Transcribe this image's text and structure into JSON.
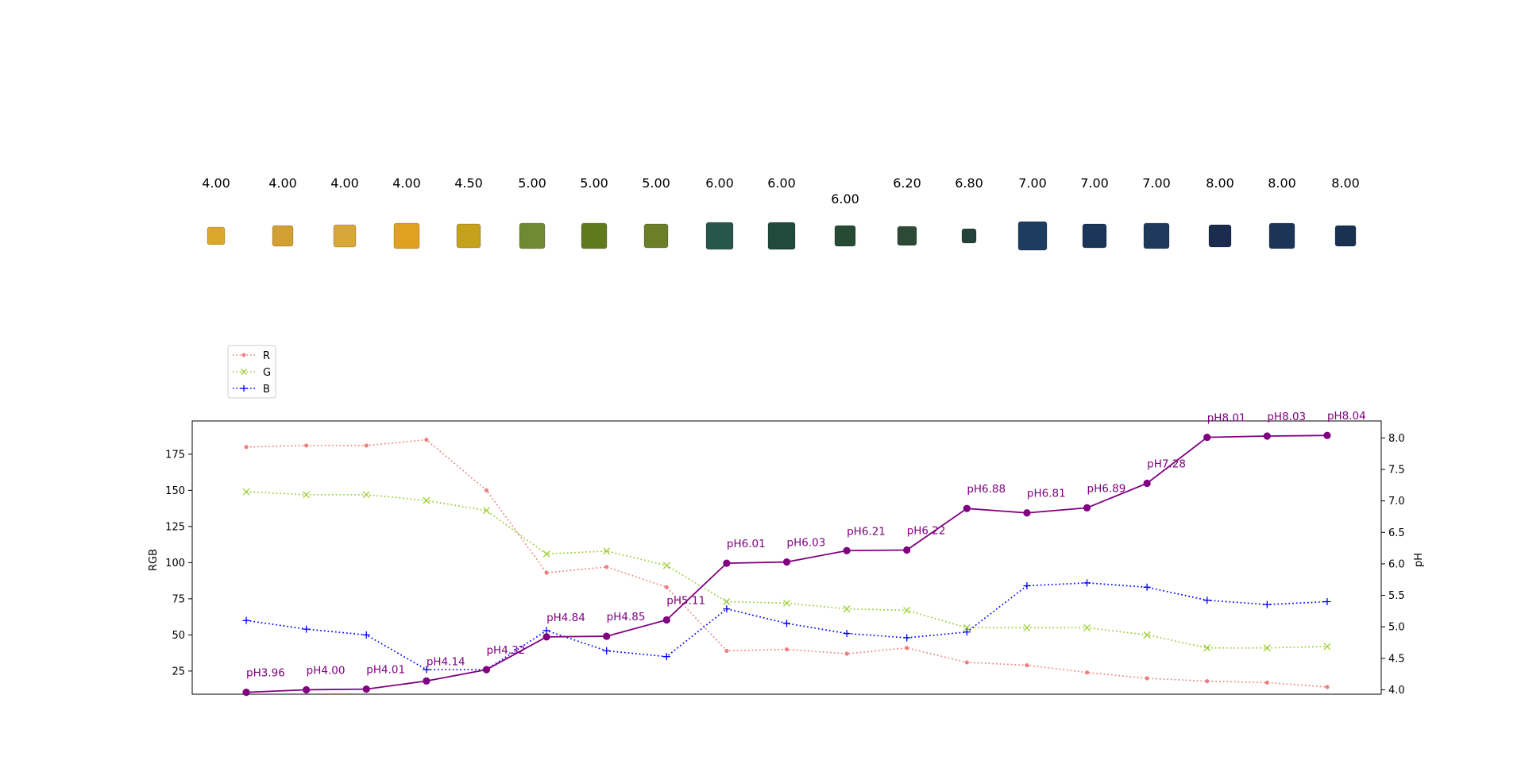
{
  "swatches": {
    "labels": [
      "4.00",
      "4.00",
      "4.00",
      "4.00",
      "4.50",
      "5.00",
      "5.00",
      "5.00",
      "6.00",
      "6.00",
      "6.00",
      "6.20",
      "6.80",
      "7.00",
      "7.00",
      "7.00",
      "8.00",
      "8.00",
      "8.00"
    ],
    "colors": [
      "#d9a82c",
      "#d2a032",
      "#d8a73a",
      "#e2a020",
      "#c6a21c",
      "#6f8a32",
      "#5f7a1c",
      "#6c7f28",
      "#28564a",
      "#1f4a3c",
      "#264a33",
      "#2c4a35",
      "#23433a",
      "#1d3c60",
      "#1b3658",
      "#1d3a5c",
      "#1b2d4e",
      "#1c3456",
      "#1a3152"
    ]
  },
  "chart_data": {
    "type": "line",
    "x": [
      1,
      2,
      3,
      4,
      5,
      6,
      7,
      8,
      9,
      10,
      11,
      12,
      13,
      14,
      15,
      16,
      17,
      18,
      19
    ],
    "series": [
      {
        "name": "R",
        "axis": "left",
        "color": "#f08080",
        "linestyle": "dotted",
        "marker": "dot",
        "values": [
          180,
          181,
          181,
          185,
          150,
          93,
          97,
          83,
          39,
          40,
          37,
          41,
          31,
          29,
          24,
          20,
          18,
          17,
          14
        ]
      },
      {
        "name": "G",
        "axis": "left",
        "color": "#9acd32",
        "linestyle": "dotted",
        "marker": "x",
        "values": [
          149,
          147,
          147,
          143,
          136,
          106,
          108,
          98,
          73,
          72,
          68,
          67,
          55,
          55,
          55,
          50,
          41,
          41,
          42
        ]
      },
      {
        "name": "B",
        "axis": "left",
        "color": "#0000ff",
        "linestyle": "dotted",
        "marker": "plus",
        "values": [
          60,
          54,
          50,
          26,
          26,
          53,
          39,
          35,
          68,
          58,
          51,
          48,
          52,
          84,
          86,
          83,
          74,
          71,
          73
        ]
      },
      {
        "axis": "right",
        "color": "#800080",
        "linestyle": "solid",
        "marker": "circle",
        "values": [
          3.96,
          4.0,
          4.01,
          4.14,
          4.32,
          4.84,
          4.85,
          5.11,
          6.01,
          6.03,
          6.21,
          6.22,
          6.88,
          6.81,
          6.89,
          7.28,
          8.01,
          8.03,
          8.04
        ],
        "point_labels": [
          "pH3.96",
          "pH4.00",
          "pH4.01",
          "pH4.14",
          "pH4.32",
          "pH4.84",
          "pH4.85",
          "pH5.11",
          "pH6.01",
          "pH6.03",
          "pH6.21",
          "pH6.22",
          "pH6.88",
          "pH6.81",
          "pH6.89",
          "pH7.28",
          "pH8.01",
          "pH8.03",
          "pH8.04"
        ]
      }
    ],
    "ylabel": "RGB",
    "y2label": "pH",
    "ylim": [
      9,
      198
    ],
    "y2lim": [
      3.93,
      8.27
    ],
    "xlim": [
      0.1,
      19.9
    ],
    "yticks": [
      25,
      50,
      75,
      100,
      125,
      150,
      175
    ],
    "y2ticks": [
      4.0,
      4.5,
      5.0,
      5.5,
      6.0,
      6.5,
      7.0,
      7.5,
      8.0
    ],
    "y2tick_labels": [
      "4.0",
      "4.5",
      "5.0",
      "5.5",
      "6.0",
      "6.5",
      "7.0",
      "7.5",
      "8.0"
    ],
    "legend": {
      "placement": "top-left, above plot",
      "entries": [
        "R",
        "G",
        "B"
      ]
    },
    "grid": false
  }
}
